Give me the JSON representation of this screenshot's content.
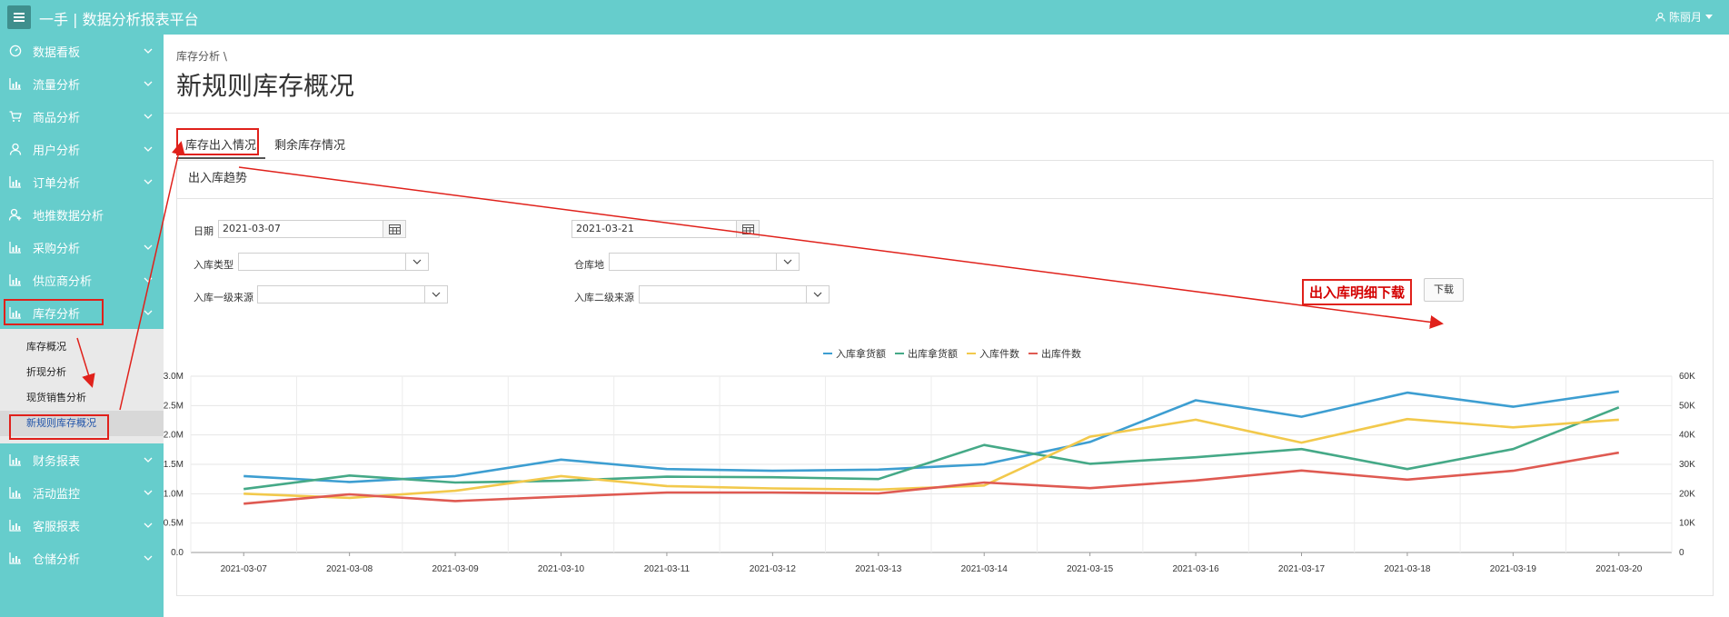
{
  "app": {
    "title": "一手 | 数据分析报表平台",
    "user": "陈丽月"
  },
  "sidebar": {
    "items": [
      {
        "label": "数据看板",
        "icon": "dashboard-icon",
        "chevron": true
      },
      {
        "label": "流量分析",
        "icon": "bar-chart-icon",
        "chevron": true
      },
      {
        "label": "商品分析",
        "icon": "cart-icon",
        "chevron": true
      },
      {
        "label": "用户分析",
        "icon": "user-icon",
        "chevron": true
      },
      {
        "label": "订单分析",
        "icon": "bar-chart-icon",
        "chevron": true
      },
      {
        "label": "地推数据分析",
        "icon": "user-add-icon",
        "chevron": false
      },
      {
        "label": "采购分析",
        "icon": "bar-chart-icon",
        "chevron": true
      },
      {
        "label": "供应商分析",
        "icon": "bar-chart-icon",
        "chevron": true
      },
      {
        "label": "库存分析",
        "icon": "bar-chart-icon",
        "chevron": true
      }
    ],
    "submenu": [
      "库存概况",
      "折现分析",
      "现货销售分析",
      "新规则库存概况"
    ],
    "items_after": [
      {
        "label": "财务报表",
        "icon": "bar-chart-icon"
      },
      {
        "label": "活动监控",
        "icon": "bar-chart-icon"
      },
      {
        "label": "客服报表",
        "icon": "bar-chart-icon"
      },
      {
        "label": "仓储分析",
        "icon": "bar-chart-icon"
      }
    ]
  },
  "main": {
    "breadcrumb": "库存分析 \\",
    "title": "新规则库存概况",
    "tabs": [
      "库存出入情况",
      "剩余库存情况"
    ],
    "panel_title": "出入库趋势",
    "filters": {
      "date_label": "日期",
      "date_start": "2021-03-07",
      "date_end": "2021-03-21",
      "in_type_label": "入库类型",
      "warehouse_label": "仓库地",
      "source1_label": "入库一级来源",
      "source2_label": "入库二级来源"
    },
    "download_annotation": "出入库明细下载",
    "download_button": "下载"
  },
  "colors": {
    "accent": "#66cdcc",
    "annotation": "#e0211b"
  },
  "chart_data": {
    "type": "line",
    "categories": [
      "2021-03-07",
      "2021-03-08",
      "2021-03-09",
      "2021-03-10",
      "2021-03-11",
      "2021-03-12",
      "2021-03-13",
      "2021-03-14",
      "2021-03-15",
      "2021-03-16",
      "2021-03-17",
      "2021-03-18",
      "2021-03-19",
      "2021-03-20"
    ],
    "y_left": {
      "ticks": [
        "0.0",
        "0.5M",
        "1.0M",
        "1.5M",
        "2.0M",
        "2.5M",
        "3.0M"
      ],
      "range": [
        0,
        3000000
      ]
    },
    "y_right": {
      "ticks": [
        "0",
        "10K",
        "20K",
        "30K",
        "40K",
        "50K",
        "60K"
      ],
      "range": [
        0,
        60000
      ]
    },
    "grid": true,
    "legend_position": "top",
    "series": [
      {
        "name": "入库拿货额",
        "axis": "left",
        "color": "#3d9ed1",
        "values": [
          1300000,
          1200000,
          1300000,
          1580000,
          1420000,
          1390000,
          1410000,
          1500000,
          1880000,
          2590000,
          2310000,
          2720000,
          2480000,
          2740000
        ]
      },
      {
        "name": "出库拿货额",
        "axis": "left",
        "color": "#45a987",
        "values": [
          1080000,
          1310000,
          1190000,
          1220000,
          1290000,
          1280000,
          1250000,
          1830000,
          1510000,
          1620000,
          1760000,
          1420000,
          1760000,
          2470000
        ]
      },
      {
        "name": "入库件数",
        "axis": "right",
        "color": "#f2c94c",
        "values": [
          20000,
          18600,
          21000,
          26000,
          22600,
          21800,
          21400,
          22800,
          39400,
          45200,
          37400,
          45400,
          42600,
          45200
        ]
      },
      {
        "name": "出库件数",
        "axis": "right",
        "color": "#df5a52",
        "values": [
          16600,
          19800,
          17500,
          19000,
          20400,
          20400,
          20100,
          23800,
          21900,
          24500,
          27900,
          24800,
          27800,
          34000
        ]
      }
    ]
  }
}
